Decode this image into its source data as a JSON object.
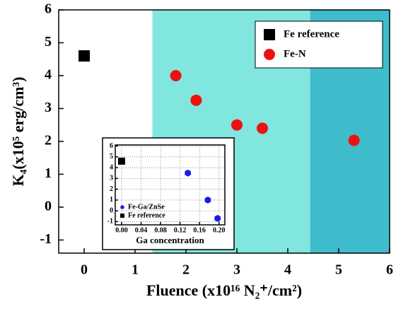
{
  "chart_data": [
    {
      "type": "scatter",
      "x_label": "Fluence (x10¹⁶ N₂⁺/cm²)",
      "y_label": "K₄(x10⁵ erg/cm³)",
      "xlim": [
        -0.5,
        6
      ],
      "ylim": [
        -1.4,
        6
      ],
      "xticks": [
        0,
        1,
        2,
        3,
        4,
        5,
        6
      ],
      "yticks": [
        -1,
        0,
        1,
        2,
        3,
        4,
        5,
        6
      ],
      "grid": false,
      "regions": [
        {
          "from": 1.34,
          "to": 4.44,
          "color": "#80e6de"
        },
        {
          "from": 4.44,
          "to": 6,
          "color": "#3fbccc"
        }
      ],
      "legend": "upper right",
      "series": [
        {
          "name": "Fe reference",
          "color": "#000000",
          "marker": "square",
          "x": [
            0
          ],
          "values": [
            4.6
          ]
        },
        {
          "name": "Fe-N",
          "color": "#ee1111",
          "marker": "circle",
          "x": [
            1.8,
            2.2,
            3.0,
            3.5,
            5.3
          ],
          "values": [
            4.0,
            3.25,
            2.5,
            2.4,
            2.03
          ]
        }
      ]
    },
    {
      "type": "scatter",
      "x_label": "Ga concentration",
      "xlim": [
        -0.013,
        0.212
      ],
      "ylim": [
        -1.3,
        6.1
      ],
      "xticks": [
        {
          "value": 0,
          "label": "0.00"
        },
        0.04,
        0.08,
        0.12,
        0.16,
        {
          "value": 0.2,
          "label": "0.20"
        }
      ],
      "yticks": [
        -1,
        0,
        1,
        2,
        3,
        4,
        5,
        6
      ],
      "grid": true,
      "legend": "lower left",
      "series": [
        {
          "name": "Fe-Ga/ZnSe",
          "color": "#1a1aee",
          "marker": "hexagon",
          "x": [
            0.136,
            0.177,
            0.197
          ],
          "values": [
            3.5,
            1.0,
            -0.7
          ]
        },
        {
          "name": "Fe reference",
          "color": "#000000",
          "marker": "square",
          "x": [
            0
          ],
          "values": [
            4.6
          ]
        }
      ]
    }
  ]
}
